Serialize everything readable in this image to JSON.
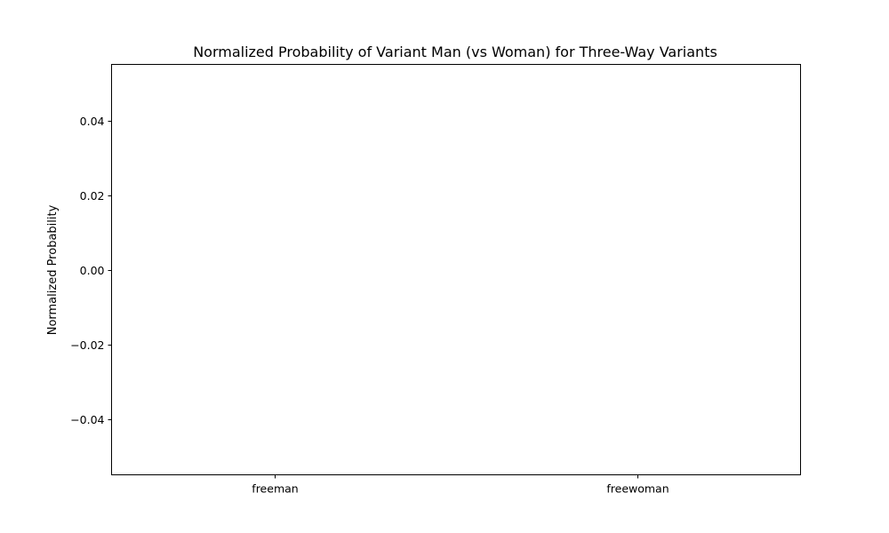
{
  "chart_data": {
    "type": "bar",
    "title": "Normalized Probability of Variant Man (vs Woman) for Three-Way Variants",
    "xlabel": "",
    "ylabel": "Normalized Probability",
    "categories": [
      "freeman",
      "freewoman"
    ],
    "values": [
      null,
      null
    ],
    "ylim": [
      -0.055,
      0.055
    ],
    "yticks": [
      0.04,
      0.02,
      0.0,
      -0.02,
      -0.04
    ],
    "ytick_labels": [
      "0.04",
      "0.02",
      "0.00",
      "−0.02",
      "−0.04"
    ],
    "grid": false,
    "legend": "none"
  }
}
